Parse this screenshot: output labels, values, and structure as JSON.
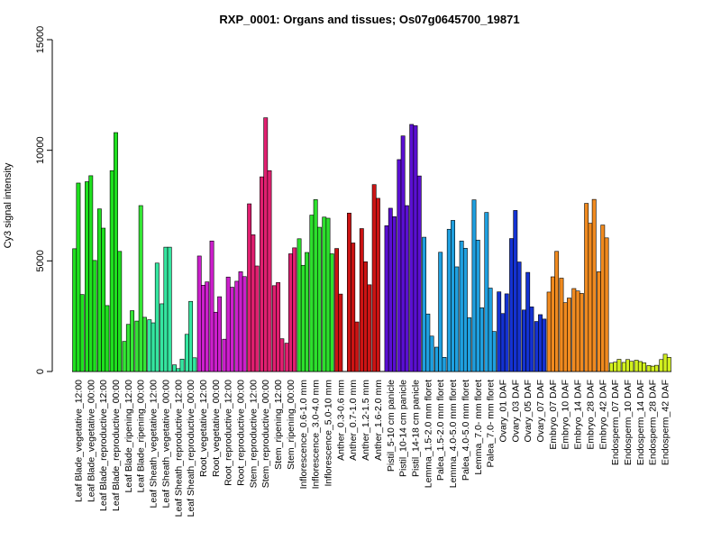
{
  "chart_data": {
    "type": "bar",
    "title": "RXP_0001: Organs and tissues; Os07g0645700_19871",
    "ylabel": "Cy3 signal intensity",
    "xlabel": "",
    "ylim": [
      0,
      15000
    ],
    "yticks": [
      0,
      5000,
      10000,
      15000
    ],
    "categories": [
      "Leaf Blade_vegetative_12:00",
      "Leaf Blade_vegetative_00:00",
      "Leaf Blade_reproductive_12:00",
      "Leaf Blade_reproductive_00:00",
      "Leaf Blade_ripening_12:00",
      "Leaf Blade_ripening_00:00",
      "Leaf Sheath_vegetative_12:00",
      "Leaf Sheath_vegetative_00:00",
      "Leaf Sheath_reproductive_12:00",
      "Leaf Sheath_reproductive_00:00",
      "Root_vegetative_12:00",
      "Root_vegetative_00:00",
      "Root_reproductive_12:00",
      "Root_reproductive_00:00",
      "Stem_reproductive_12:00",
      "Stem_reproductive_00:00",
      "Stem_ripening_12:00",
      "Stem_ripening_00:00",
      "Inflorescence_0.6-1.0 mm",
      "Inflorescence_3.0-4.0 mm",
      "Inflorescence_5.0-10 mm",
      "Anther_0.3-0.6 mm",
      "Anther_0.7-1.0 mm",
      "Anther_1.2-1.5 mm",
      "Anther_1.6-2.0 mm",
      "Pistil_5-10 cm panicle",
      "Pistil_10-14 cm panicle",
      "Pistil_14-18 cm panicle",
      "Lemma_1.5-2.0 mm floret",
      "Palea_1.5-2.0 mm floret",
      "Lemma_4.0-5.0 mm floret",
      "Palea_4.0-5.0 mm floret",
      "Lemma_7.0- mm floret",
      "Palea_7.0- mm floret",
      "Ovary_01 DAF",
      "Ovary_03 DAF",
      "Ovary_05 DAF",
      "Ovary_07 DAF",
      "Embryo_07 DAF",
      "Embryo_10 DAF",
      "Embryo_14 DAF",
      "Embryo_28 DAF",
      "Embryo_42 DAF",
      "Endosperm_07 DAF",
      "Endosperm_10 DAF",
      "Endosperm_14 DAF",
      "Endosperm_28 DAF",
      "Endosperm_42 DAF"
    ],
    "groups": [
      {
        "color": "#1fe01f",
        "values": [
          5550,
          8520,
          3480
        ]
      },
      {
        "color": "#1fe01f",
        "values": [
          8580,
          8850,
          5020
        ]
      },
      {
        "color": "#1fe01f",
        "values": [
          7350,
          6480,
          2980
        ]
      },
      {
        "color": "#1fe01f",
        "values": [
          9080,
          10800,
          5430
        ]
      },
      {
        "color": "#35e635",
        "values": [
          1360,
          2130,
          2750
        ]
      },
      {
        "color": "#35e635",
        "values": [
          2280,
          7500,
          2450
        ]
      },
      {
        "color": "#35e6a0",
        "values": [
          2340,
          2200,
          4900
        ]
      },
      {
        "color": "#35e6a0",
        "values": [
          3060,
          5620,
          5620
        ]
      },
      {
        "color": "#35e6a0",
        "values": [
          300,
          130,
          560
        ]
      },
      {
        "color": "#35e6a0",
        "values": [
          1680,
          3170,
          620
        ]
      },
      {
        "color": "#cc1fcc",
        "values": [
          5220,
          3900,
          4050
        ]
      },
      {
        "color": "#cc1fcc",
        "values": [
          5900,
          2680,
          3380
        ]
      },
      {
        "color": "#cc1fcc",
        "values": [
          1460,
          4270,
          3810
        ]
      },
      {
        "color": "#cc1fcc",
        "values": [
          4080,
          4510,
          4290
        ]
      },
      {
        "color": "#e01f70",
        "values": [
          7580,
          6180,
          4770
        ]
      },
      {
        "color": "#e01f70",
        "values": [
          8800,
          11470,
          9080
        ]
      },
      {
        "color": "#e01f70",
        "values": [
          3880,
          4020,
          1480
        ]
      },
      {
        "color": "#e01f70",
        "values": [
          1280,
          5320,
          5590
        ]
      },
      {
        "color": "#2de02d",
        "values": [
          6000,
          4800,
          5380
        ]
      },
      {
        "color": "#2de02d",
        "values": [
          7070,
          7770,
          6520
        ]
      },
      {
        "color": "#2de02d",
        "values": [
          6980,
          6930,
          5320
        ]
      },
      {
        "color": "#cc1414",
        "values": [
          5560,
          3500
        ]
      },
      {
        "color": "#cc1414",
        "values": [
          7160,
          5810,
          2240
        ]
      },
      {
        "color": "#cc1414",
        "values": [
          6460,
          4960,
          3920
        ]
      },
      {
        "color": "#cc1414",
        "values": [
          8450,
          7830,
          0
        ]
      },
      {
        "color": "#5a0fd2",
        "values": [
          6590,
          7380,
          7000
        ]
      },
      {
        "color": "#5a0fd2",
        "values": [
          9580,
          10650,
          7500
        ]
      },
      {
        "color": "#5a0fd2",
        "values": [
          11170,
          11110,
          8840
        ]
      },
      {
        "color": "#1fa0e0",
        "values": [
          6070,
          2600,
          1600
        ]
      },
      {
        "color": "#1fa0e0",
        "values": [
          1100,
          5390,
          640
        ]
      },
      {
        "color": "#1fa0e0",
        "values": [
          6430,
          6830,
          4730
        ]
      },
      {
        "color": "#1fa0e0",
        "values": [
          5900,
          5570,
          2430
        ]
      },
      {
        "color": "#1fa0e0",
        "values": [
          7760,
          5940,
          2880
        ]
      },
      {
        "color": "#1fa0e0",
        "values": [
          7190,
          3770,
          1810
        ]
      },
      {
        "color": "#1432d2",
        "values": [
          3600,
          2620,
          3510
        ]
      },
      {
        "color": "#1432d2",
        "values": [
          6010,
          7280,
          4950
        ]
      },
      {
        "color": "#1432d2",
        "values": [
          2780,
          4480,
          2920
        ]
      },
      {
        "color": "#1432d2",
        "values": [
          2260,
          2570,
          2370
        ]
      },
      {
        "color": "#f08a1f",
        "values": [
          3590,
          4280,
          5430
        ]
      },
      {
        "color": "#f08a1f",
        "values": [
          4220,
          3110,
          3320
        ]
      },
      {
        "color": "#f08a1f",
        "values": [
          3750,
          3640,
          3530
        ]
      },
      {
        "color": "#f08a1f",
        "values": [
          7600,
          6700,
          7780
        ]
      },
      {
        "color": "#f08a1f",
        "values": [
          4510,
          6620,
          6040
        ]
      },
      {
        "color": "#d2f01f",
        "values": [
          380,
          420,
          550
        ]
      },
      {
        "color": "#d2f01f",
        "values": [
          410,
          540,
          460
        ]
      },
      {
        "color": "#d2f01f",
        "values": [
          510,
          450,
          390
        ]
      },
      {
        "color": "#d2f01f",
        "values": [
          270,
          240,
          280
        ]
      },
      {
        "color": "#d2f01f",
        "values": [
          540,
          780,
          640
        ]
      }
    ],
    "grid": false,
    "legend": "none"
  }
}
